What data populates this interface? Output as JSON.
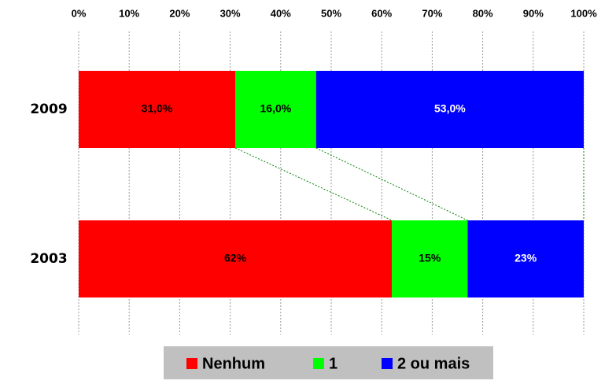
{
  "chart_data": {
    "type": "stacked_bar_100_horizontal",
    "categories": [
      "2009",
      "2003"
    ],
    "series": [
      {
        "name": "Nenhum",
        "color": "#ff0000",
        "values": [
          31,
          62
        ],
        "value_labels": [
          "31,0%",
          "62%"
        ]
      },
      {
        "name": "1",
        "color": "#00ff00",
        "values": [
          16,
          15
        ],
        "value_labels": [
          "16,0%",
          "15%"
        ]
      },
      {
        "name": "2 ou mais",
        "color": "#0000ff",
        "values": [
          53,
          23
        ],
        "value_labels": [
          "53,0%",
          "23%"
        ]
      }
    ],
    "xlim": [
      0,
      100
    ],
    "xticks": [
      {
        "value": 0,
        "label": "0%"
      },
      {
        "value": 10,
        "label": "10%"
      },
      {
        "value": 20,
        "label": "20%"
      },
      {
        "value": 30,
        "label": "30%"
      },
      {
        "value": 40,
        "label": "40%"
      },
      {
        "value": 50,
        "label": "50%"
      },
      {
        "value": 60,
        "label": "60%"
      },
      {
        "value": 70,
        "label": "70%"
      },
      {
        "value": 80,
        "label": "80%"
      },
      {
        "value": 90,
        "label": "90%"
      },
      {
        "value": 100,
        "label": "100%"
      }
    ],
    "grid": true,
    "legend": "bottom"
  }
}
